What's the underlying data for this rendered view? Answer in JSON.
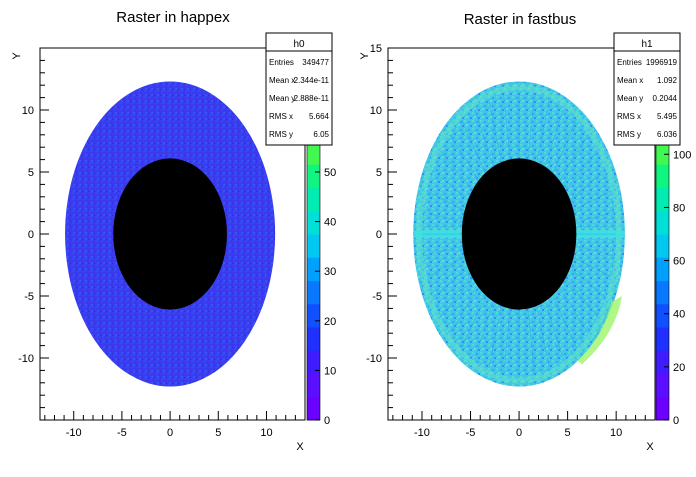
{
  "chart_data": [
    {
      "type": "heatmap",
      "title": "Raster in happex",
      "xlabel": "X",
      "ylabel": "Y",
      "xlim": [
        -13.5,
        14.0
      ],
      "ylim": [
        -15.0,
        15.0
      ],
      "x_ticks": [
        -10,
        -5,
        0,
        5,
        10
      ],
      "y_ticks": [
        -10,
        -5,
        0,
        5,
        10
      ],
      "colorbar_ticks": [
        0,
        10,
        20,
        30,
        40,
        50
      ],
      "colorbar_range": [
        0,
        75
      ],
      "stats": {
        "name": "h0",
        "rows": [
          {
            "label": "Entries",
            "value": "349477"
          },
          {
            "label": "Mean x",
            "value": "2.344e-11"
          },
          {
            "label": "Mean y",
            "value": "2.888e-11"
          },
          {
            "label": "RMS x",
            "value": "5.664"
          },
          {
            "label": "RMS y",
            "value": "6.05"
          }
        ]
      },
      "outer_ellipse": {
        "cx": 0,
        "cy": 0,
        "rx": 10.9,
        "ry": 12.3
      },
      "inner_hole": {
        "cx": 0,
        "cy": 0,
        "rx": 5.9,
        "ry": 6.1
      },
      "dominant_count": 3
    },
    {
      "type": "heatmap",
      "title": "Raster in fastbus",
      "xlabel": "X",
      "ylabel": "Y",
      "xlim": [
        -13.5,
        14.0
      ],
      "ylim": [
        -15.0,
        15.0
      ],
      "x_ticks": [
        -10,
        -5,
        0,
        5,
        10
      ],
      "y_ticks": [
        -10,
        -5,
        0,
        5,
        10,
        15
      ],
      "colorbar_ticks": [
        0,
        20,
        40,
        60,
        80,
        100
      ],
      "colorbar_range": [
        0,
        140
      ],
      "stats": {
        "name": "h1",
        "rows": [
          {
            "label": "Entries",
            "value": "1996919"
          },
          {
            "label": "Mean x",
            "value": "1.092"
          },
          {
            "label": "Mean y",
            "value": "0.2044"
          },
          {
            "label": "RMS x",
            "value": "5.495"
          },
          {
            "label": "RMS y",
            "value": "6.036"
          }
        ]
      },
      "outer_ellipse": {
        "cx": 0,
        "cy": 0,
        "rx": 10.9,
        "ry": 12.3
      },
      "inner_hole": {
        "cx": 0,
        "cy": 0,
        "rx": 5.9,
        "ry": 6.1
      },
      "dominant_count": 50
    }
  ]
}
